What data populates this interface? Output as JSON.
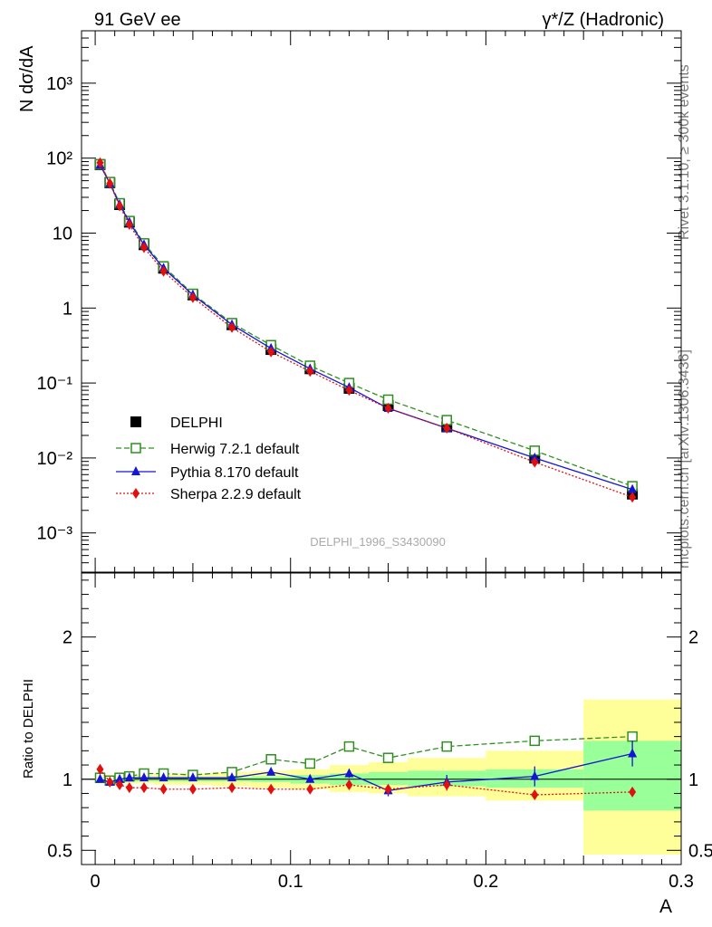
{
  "header": {
    "left": "91 GeV ee",
    "right": "γ*/Z (Hadronic)"
  },
  "side_labels": {
    "rivet": "Rivet 3.1.10, ≥ 300k events",
    "mcplots": "mcplots.cern.ch [arXiv:1306.3436]"
  },
  "watermark": "DELPHI_1996_S3430090",
  "chart_data": [
    {
      "type": "scatter",
      "panel": "main",
      "ylabel": "N dσ/dA",
      "yscale": "log",
      "ylim": [
        0.0003,
        5000
      ],
      "xlim": [
        -0.007,
        0.3
      ],
      "ytick_labels": [
        "10⁻³",
        "10⁻²",
        "10⁻¹",
        "1",
        "10",
        "10²",
        "10³"
      ],
      "ytick_values": [
        0.001,
        0.01,
        0.1,
        1,
        10,
        100,
        1000
      ],
      "legend_position": "lower-left",
      "x": [
        0.0025,
        0.0075,
        0.0125,
        0.0175,
        0.025,
        0.035,
        0.05,
        0.07,
        0.09,
        0.11,
        0.13,
        0.15,
        0.18,
        0.225,
        0.275
      ],
      "series": [
        {
          "name": "DELPHI",
          "color": "#000000",
          "marker": "square-filled",
          "line": "none",
          "values": [
            82,
            47,
            24,
            14,
            7.0,
            3.4,
            1.5,
            0.6,
            0.28,
            0.155,
            0.085,
            0.05,
            0.026,
            0.01,
            0.0033
          ]
        },
        {
          "name": "Herwig 7.2.1 default",
          "color": "#2f8f1f",
          "marker": "square-open",
          "line": "dashed",
          "values": [
            83,
            48,
            25,
            14.5,
            7.3,
            3.6,
            1.55,
            0.63,
            0.32,
            0.17,
            0.1,
            0.06,
            0.032,
            0.0125,
            0.0042
          ]
        },
        {
          "name": "Pythia 8.170 default",
          "color": "#1414d4",
          "marker": "triangle-filled",
          "line": "solid",
          "values": [
            81,
            46,
            24,
            14,
            7.0,
            3.4,
            1.5,
            0.6,
            0.29,
            0.155,
            0.087,
            0.046,
            0.025,
            0.01,
            0.0038
          ]
        },
        {
          "name": "Sherpa 2.2.9 default",
          "color": "#e01010",
          "marker": "diamond-filled",
          "line": "dotted",
          "values": [
            87,
            46,
            23,
            13,
            6.4,
            3.1,
            1.38,
            0.55,
            0.26,
            0.143,
            0.08,
            0.046,
            0.025,
            0.0088,
            0.003
          ]
        }
      ]
    },
    {
      "type": "scatter",
      "panel": "ratio",
      "xlabel": "A",
      "ylabel": "Ratio to DELPHI",
      "ylim": [
        0.4,
        2.45
      ],
      "xlim": [
        -0.007,
        0.3
      ],
      "ytick_labels": [
        "0.5",
        "1",
        "2"
      ],
      "ytick_values": [
        0.5,
        1,
        2
      ],
      "xtick_labels": [
        "0",
        "0.1",
        "0.2",
        "0.3"
      ],
      "xtick_values": [
        0,
        0.1,
        0.2,
        0.3
      ],
      "x": [
        0.0025,
        0.0075,
        0.0125,
        0.0175,
        0.025,
        0.035,
        0.05,
        0.07,
        0.09,
        0.11,
        0.13,
        0.15,
        0.18,
        0.225,
        0.275
      ],
      "bin_edges": [
        0.0,
        0.005,
        0.01,
        0.015,
        0.02,
        0.03,
        0.04,
        0.06,
        0.08,
        0.1,
        0.12,
        0.14,
        0.16,
        0.2,
        0.25,
        0.3
      ],
      "band_stat": [
        [
          0.985,
          1.015
        ],
        [
          0.985,
          1.015
        ],
        [
          0.985,
          1.015
        ],
        [
          0.985,
          1.015
        ],
        [
          0.985,
          1.015
        ],
        [
          0.985,
          1.015
        ],
        [
          0.985,
          1.015
        ],
        [
          0.985,
          1.015
        ],
        [
          0.98,
          1.02
        ],
        [
          0.97,
          1.03
        ],
        [
          0.96,
          1.04
        ],
        [
          0.96,
          1.05
        ],
        [
          0.95,
          1.06
        ],
        [
          0.94,
          1.07
        ],
        [
          0.78,
          1.27
        ]
      ],
      "band_total": [
        [
          0.97,
          1.03
        ],
        [
          0.97,
          1.03
        ],
        [
          0.97,
          1.03
        ],
        [
          0.97,
          1.03
        ],
        [
          0.97,
          1.03
        ],
        [
          0.96,
          1.04
        ],
        [
          0.96,
          1.04
        ],
        [
          0.95,
          1.05
        ],
        [
          0.94,
          1.06
        ],
        [
          0.93,
          1.07
        ],
        [
          0.91,
          1.1
        ],
        [
          0.9,
          1.12
        ],
        [
          0.88,
          1.15
        ],
        [
          0.85,
          1.2
        ],
        [
          0.47,
          1.56
        ]
      ],
      "series": [
        {
          "name": "Herwig 7.2.1 default",
          "color": "#2f8f1f",
          "marker": "square-open",
          "line": "dashed",
          "values": [
            1.01,
            0.99,
            1.01,
            1.02,
            1.04,
            1.04,
            1.03,
            1.05,
            1.14,
            1.11,
            1.23,
            1.15,
            1.23,
            1.27,
            1.3
          ]
        },
        {
          "name": "Pythia 8.170 default",
          "color": "#1414d4",
          "marker": "triangle-filled",
          "line": "solid",
          "values": [
            1.0,
            0.98,
            1.0,
            1.01,
            1.01,
            1.01,
            1.01,
            1.01,
            1.05,
            1.0,
            1.04,
            0.92,
            0.98,
            1.02,
            1.18
          ],
          "errors": [
            0.01,
            0.01,
            0.01,
            0.01,
            0.01,
            0.01,
            0.01,
            0.01,
            0.02,
            0.02,
            0.03,
            0.04,
            0.05,
            0.07,
            0.09
          ]
        },
        {
          "name": "Sherpa 2.2.9 default",
          "color": "#e01010",
          "marker": "diamond-filled",
          "line": "dotted",
          "values": [
            1.07,
            0.98,
            0.96,
            0.94,
            0.94,
            0.93,
            0.93,
            0.94,
            0.93,
            0.93,
            0.96,
            0.93,
            0.96,
            0.89,
            0.91
          ],
          "errors": [
            0.01,
            0.01,
            0.01,
            0.01,
            0.01,
            0.01,
            0.01,
            0.01,
            0.02,
            0.02,
            0.02,
            0.03,
            0.04,
            0.02,
            0.03
          ]
        }
      ]
    }
  ]
}
